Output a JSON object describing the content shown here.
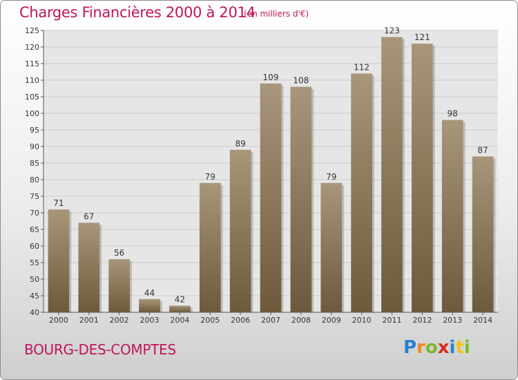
{
  "title": "Charges Financières 2000 à 2014",
  "subtitle": "(en milliers d'€)",
  "commune": "BOURG-DES-COMPTES",
  "logo": {
    "text": "Proxiti",
    "letters": [
      "P",
      "r",
      "o",
      "x",
      "i",
      "t",
      "i"
    ]
  },
  "colors": {
    "title": "#c0145a",
    "bar_light": "#a8967a",
    "bar_dark": "#6d5a3c",
    "grid": "#cccccc"
  },
  "chart_data": {
    "type": "bar",
    "categories": [
      "2000",
      "2001",
      "2002",
      "2003",
      "2004",
      "2005",
      "2006",
      "2007",
      "2008",
      "2009",
      "2010",
      "2011",
      "2012",
      "2013",
      "2014"
    ],
    "values": [
      71,
      67,
      56,
      44,
      42,
      79,
      89,
      109,
      108,
      79,
      112,
      123,
      121,
      98,
      87
    ],
    "data_labels": [
      "71",
      "67",
      "56",
      "44",
      "42",
      "79",
      "89",
      "109",
      "108",
      "79",
      "112",
      "123",
      "121",
      "98",
      "87"
    ],
    "yticks": [
      40,
      45,
      50,
      55,
      60,
      65,
      70,
      75,
      80,
      85,
      90,
      95,
      100,
      105,
      110,
      115,
      120,
      125
    ],
    "ylim": [
      40,
      125
    ],
    "grid": true,
    "legend": "none"
  }
}
